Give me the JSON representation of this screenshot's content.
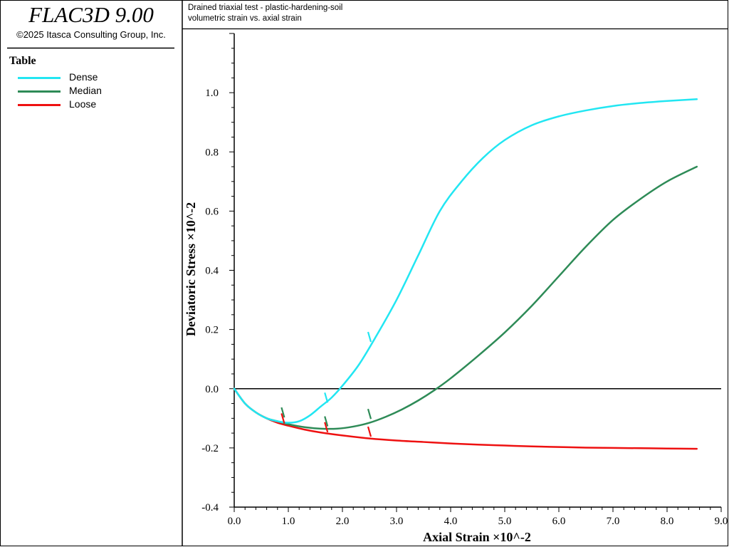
{
  "app": {
    "title": "FLAC3D 9.00",
    "copyright": "©2025 Itasca Consulting Group, Inc."
  },
  "legend": {
    "title": "Table",
    "items": [
      {
        "label": "Dense",
        "color": "#22e6f2"
      },
      {
        "label": "Median",
        "color": "#2e8b57"
      },
      {
        "label": "Loose",
        "color": "#ee1111"
      }
    ]
  },
  "plot_titles": {
    "line1": "Drained triaxial test - plastic-hardening-soil",
    "line2": "volumetric strain vs. axial strain"
  },
  "chart_data": {
    "type": "line",
    "xlabel": "Axial Strain ×10^-2",
    "ylabel": "Deviatoric Stress ×10^-2",
    "xlim": [
      0,
      9
    ],
    "ylim": [
      -0.4,
      1.2
    ],
    "xticks": [
      "0.0",
      "1.0",
      "2.0",
      "3.0",
      "4.0",
      "5.0",
      "6.0",
      "7.0",
      "8.0",
      "9.0"
    ],
    "yticks": [
      "-0.4",
      "-0.2",
      "0.0",
      "0.2",
      "0.4",
      "0.6",
      "0.8",
      "1.0"
    ],
    "grid": false,
    "legend_position": "left panel",
    "series": [
      {
        "name": "Dense",
        "color": "#22e6f2",
        "x": [
          0,
          0.2,
          0.4,
          0.6,
          0.8,
          1.0,
          1.2,
          1.4,
          1.6,
          1.8,
          2.0,
          2.3,
          2.6,
          3.0,
          3.4,
          3.8,
          4.2,
          4.6,
          5.0,
          5.5,
          6.0,
          6.5,
          7.0,
          7.5,
          8.0,
          8.55
        ],
        "y": [
          0,
          -0.05,
          -0.08,
          -0.1,
          -0.11,
          -0.115,
          -0.11,
          -0.09,
          -0.06,
          -0.03,
          0.01,
          0.08,
          0.17,
          0.3,
          0.45,
          0.6,
          0.7,
          0.78,
          0.84,
          0.89,
          0.92,
          0.94,
          0.955,
          0.965,
          0.972,
          0.978
        ]
      },
      {
        "name": "Median",
        "color": "#2e8b57",
        "x": [
          0,
          0.2,
          0.4,
          0.6,
          0.8,
          1.0,
          1.3,
          1.6,
          1.9,
          2.2,
          2.5,
          2.8,
          3.1,
          3.4,
          3.7,
          4.0,
          4.5,
          5.0,
          5.5,
          6.0,
          6.5,
          7.0,
          7.5,
          8.0,
          8.55
        ],
        "y": [
          0,
          -0.05,
          -0.08,
          -0.1,
          -0.11,
          -0.12,
          -0.13,
          -0.135,
          -0.135,
          -0.128,
          -0.115,
          -0.095,
          -0.07,
          -0.04,
          -0.005,
          0.035,
          0.11,
          0.19,
          0.28,
          0.38,
          0.48,
          0.57,
          0.64,
          0.7,
          0.75
        ]
      },
      {
        "name": "Loose",
        "color": "#ee1111",
        "x": [
          0,
          0.2,
          0.4,
          0.6,
          0.8,
          1.0,
          1.3,
          1.6,
          2.0,
          2.5,
          3.0,
          3.5,
          4.0,
          4.5,
          5.0,
          5.5,
          6.0,
          6.5,
          7.0,
          7.5,
          8.0,
          8.55
        ],
        "y": [
          0,
          -0.05,
          -0.08,
          -0.1,
          -0.115,
          -0.125,
          -0.138,
          -0.148,
          -0.158,
          -0.168,
          -0.175,
          -0.18,
          -0.185,
          -0.189,
          -0.192,
          -0.195,
          -0.197,
          -0.199,
          -0.2,
          -0.201,
          -0.202,
          -0.203
        ]
      }
    ],
    "ticks_marks": [
      {
        "series": "Dense",
        "points": [
          [
            1.7,
            -0.035
          ],
          [
            2.5,
            0.17
          ]
        ]
      },
      {
        "series": "Median",
        "points": [
          [
            0.9,
            -0.085
          ],
          [
            1.7,
            -0.115
          ],
          [
            2.5,
            -0.09
          ]
        ]
      },
      {
        "series": "Loose",
        "points": [
          [
            0.9,
            -0.105
          ],
          [
            1.7,
            -0.135
          ],
          [
            2.5,
            -0.15
          ]
        ]
      }
    ]
  }
}
